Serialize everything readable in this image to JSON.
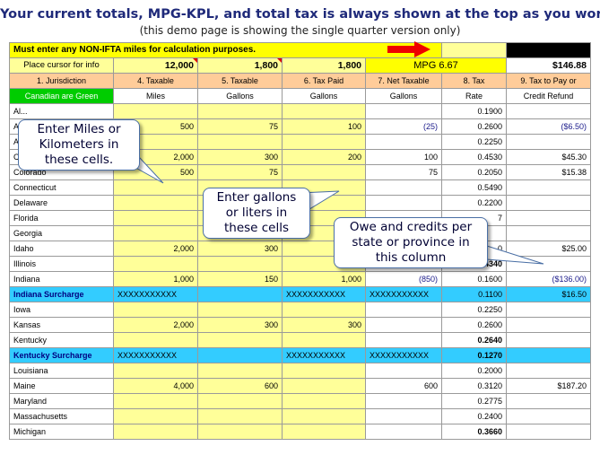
{
  "header": {
    "title": "Your current totals, MPG-KPL, and total tax is always shown at the top as you work",
    "subtitle": "(this demo page is showing the single quarter version only)"
  },
  "banner": {
    "text": "Must enter any NON-IFTA miles for calculation purposes."
  },
  "totals": {
    "label": "Place cursor for info",
    "miles": "12,000",
    "gallons": "1,800",
    "tax_paid": "1,800",
    "mpg": "MPG 6.67",
    "total": "$146.88"
  },
  "columns": {
    "c1": "1. Jurisdiction",
    "c4": "4. Taxable",
    "c5": "5. Taxable",
    "c6": "6. Tax Paid",
    "c7": "7. Net Taxable",
    "c8": "8. Tax",
    "c9": "9. Tax to Pay or",
    "c1b": "Canadian are Green",
    "c4b": "Miles",
    "c5b": "Gallons",
    "c6b": "Gallons",
    "c7b": "Gallons",
    "c8b": "Rate",
    "c9b": "Credit Refund"
  },
  "rows": [
    {
      "name": "Al...",
      "miles": "",
      "gallons": "",
      "paid": "",
      "net": "",
      "rate": "0.1900",
      "due": "",
      "rate_bold": false
    },
    {
      "name": "A...",
      "miles": "500",
      "gallons": "75",
      "paid": "100",
      "net": "(25)",
      "rate": "0.2600",
      "due": "($6.50)",
      "rate_bold": false
    },
    {
      "name": "A...",
      "miles": "",
      "gallons": "",
      "paid": "",
      "net": "",
      "rate": "0.2250",
      "due": "",
      "rate_bold": false
    },
    {
      "name": "C...",
      "miles": "2,000",
      "gallons": "300",
      "paid": "200",
      "net": "100",
      "rate": "0.4530",
      "due": "$45.30",
      "rate_bold": false
    },
    {
      "name": "Colorado",
      "miles": "500",
      "gallons": "75",
      "paid": "",
      "net": "75",
      "rate": "0.2050",
      "due": "$15.38",
      "rate_bold": false
    },
    {
      "name": "Connecticut",
      "miles": "",
      "gallons": "",
      "paid": "",
      "net": "",
      "rate": "0.5490",
      "due": "",
      "rate_bold": false
    },
    {
      "name": "Delaware",
      "miles": "",
      "gallons": "",
      "paid": "",
      "net": "",
      "rate": "0.2200",
      "due": "",
      "rate_bold": false
    },
    {
      "name": "Florida",
      "miles": "",
      "gallons": "",
      "paid": "",
      "net": "",
      "rate": "7",
      "due": "",
      "rate_bold": false
    },
    {
      "name": "Georgia",
      "miles": "",
      "gallons": "",
      "paid": "",
      "net": "",
      "rate": "",
      "due": "",
      "rate_bold": false
    },
    {
      "name": "Idaho",
      "miles": "2,000",
      "gallons": "300",
      "paid": "",
      "net": "",
      "rate": "0",
      "due": "$25.00",
      "rate_bold": false
    },
    {
      "name": "Illinois",
      "miles": "",
      "gallons": "",
      "paid": "",
      "net": "",
      "rate": "0.4340",
      "due": "",
      "rate_bold": true
    },
    {
      "name": "Indiana",
      "miles": "1,000",
      "gallons": "150",
      "paid": "1,000",
      "net": "(850)",
      "rate": "0.1600",
      "due": "($136.00)",
      "rate_bold": false
    },
    {
      "name": "Indiana  Surcharge",
      "miles": "XXXXXXXXXXX",
      "gallons": "",
      "paid": "XXXXXXXXXXX",
      "net": "XXXXXXXXXXX",
      "rate": "0.1100",
      "due": "$16.50",
      "rate_bold": false,
      "surcharge": true
    },
    {
      "name": "Iowa",
      "miles": "",
      "gallons": "",
      "paid": "",
      "net": "",
      "rate": "0.2250",
      "due": "",
      "rate_bold": false
    },
    {
      "name": "Kansas",
      "miles": "2,000",
      "gallons": "300",
      "paid": "300",
      "net": "",
      "rate": "0.2600",
      "due": "",
      "rate_bold": false
    },
    {
      "name": "Kentucky",
      "miles": "",
      "gallons": "",
      "paid": "",
      "net": "",
      "rate": "0.2640",
      "due": "",
      "rate_bold": true
    },
    {
      "name": "Kentucky Surcharge",
      "miles": "XXXXXXXXXXX",
      "gallons": "",
      "paid": "XXXXXXXXXXX",
      "net": "XXXXXXXXXXX",
      "rate": "0.1270",
      "due": "",
      "rate_bold": true,
      "surcharge": true
    },
    {
      "name": "Louisiana",
      "miles": "",
      "gallons": "",
      "paid": "",
      "net": "",
      "rate": "0.2000",
      "due": "",
      "rate_bold": false
    },
    {
      "name": "Maine",
      "miles": "4,000",
      "gallons": "600",
      "paid": "",
      "net": "600",
      "rate": "0.3120",
      "due": "$187.20",
      "rate_bold": false
    },
    {
      "name": "Maryland",
      "miles": "",
      "gallons": "",
      "paid": "",
      "net": "",
      "rate": "0.2775",
      "due": "",
      "rate_bold": false
    },
    {
      "name": "Massachusetts",
      "miles": "",
      "gallons": "",
      "paid": "",
      "net": "",
      "rate": "0.2400",
      "due": "",
      "rate_bold": false
    },
    {
      "name": "Michigan",
      "miles": "",
      "gallons": "",
      "paid": "",
      "net": "",
      "rate": "0.3660",
      "due": "",
      "rate_bold": true
    }
  ],
  "callouts": {
    "miles": "Enter Miles or Kilometers in these cells.",
    "gallons": "Enter gallons or liters in these cells",
    "owe": "Owe and credits per state or province in this column"
  },
  "colors": {
    "yellow": "#ffff99",
    "header_yellow": "#ffff00",
    "peach": "#ffcc99",
    "green": "#00cc00",
    "surcharge": "#33ccff",
    "arrow": "#ee0000"
  }
}
